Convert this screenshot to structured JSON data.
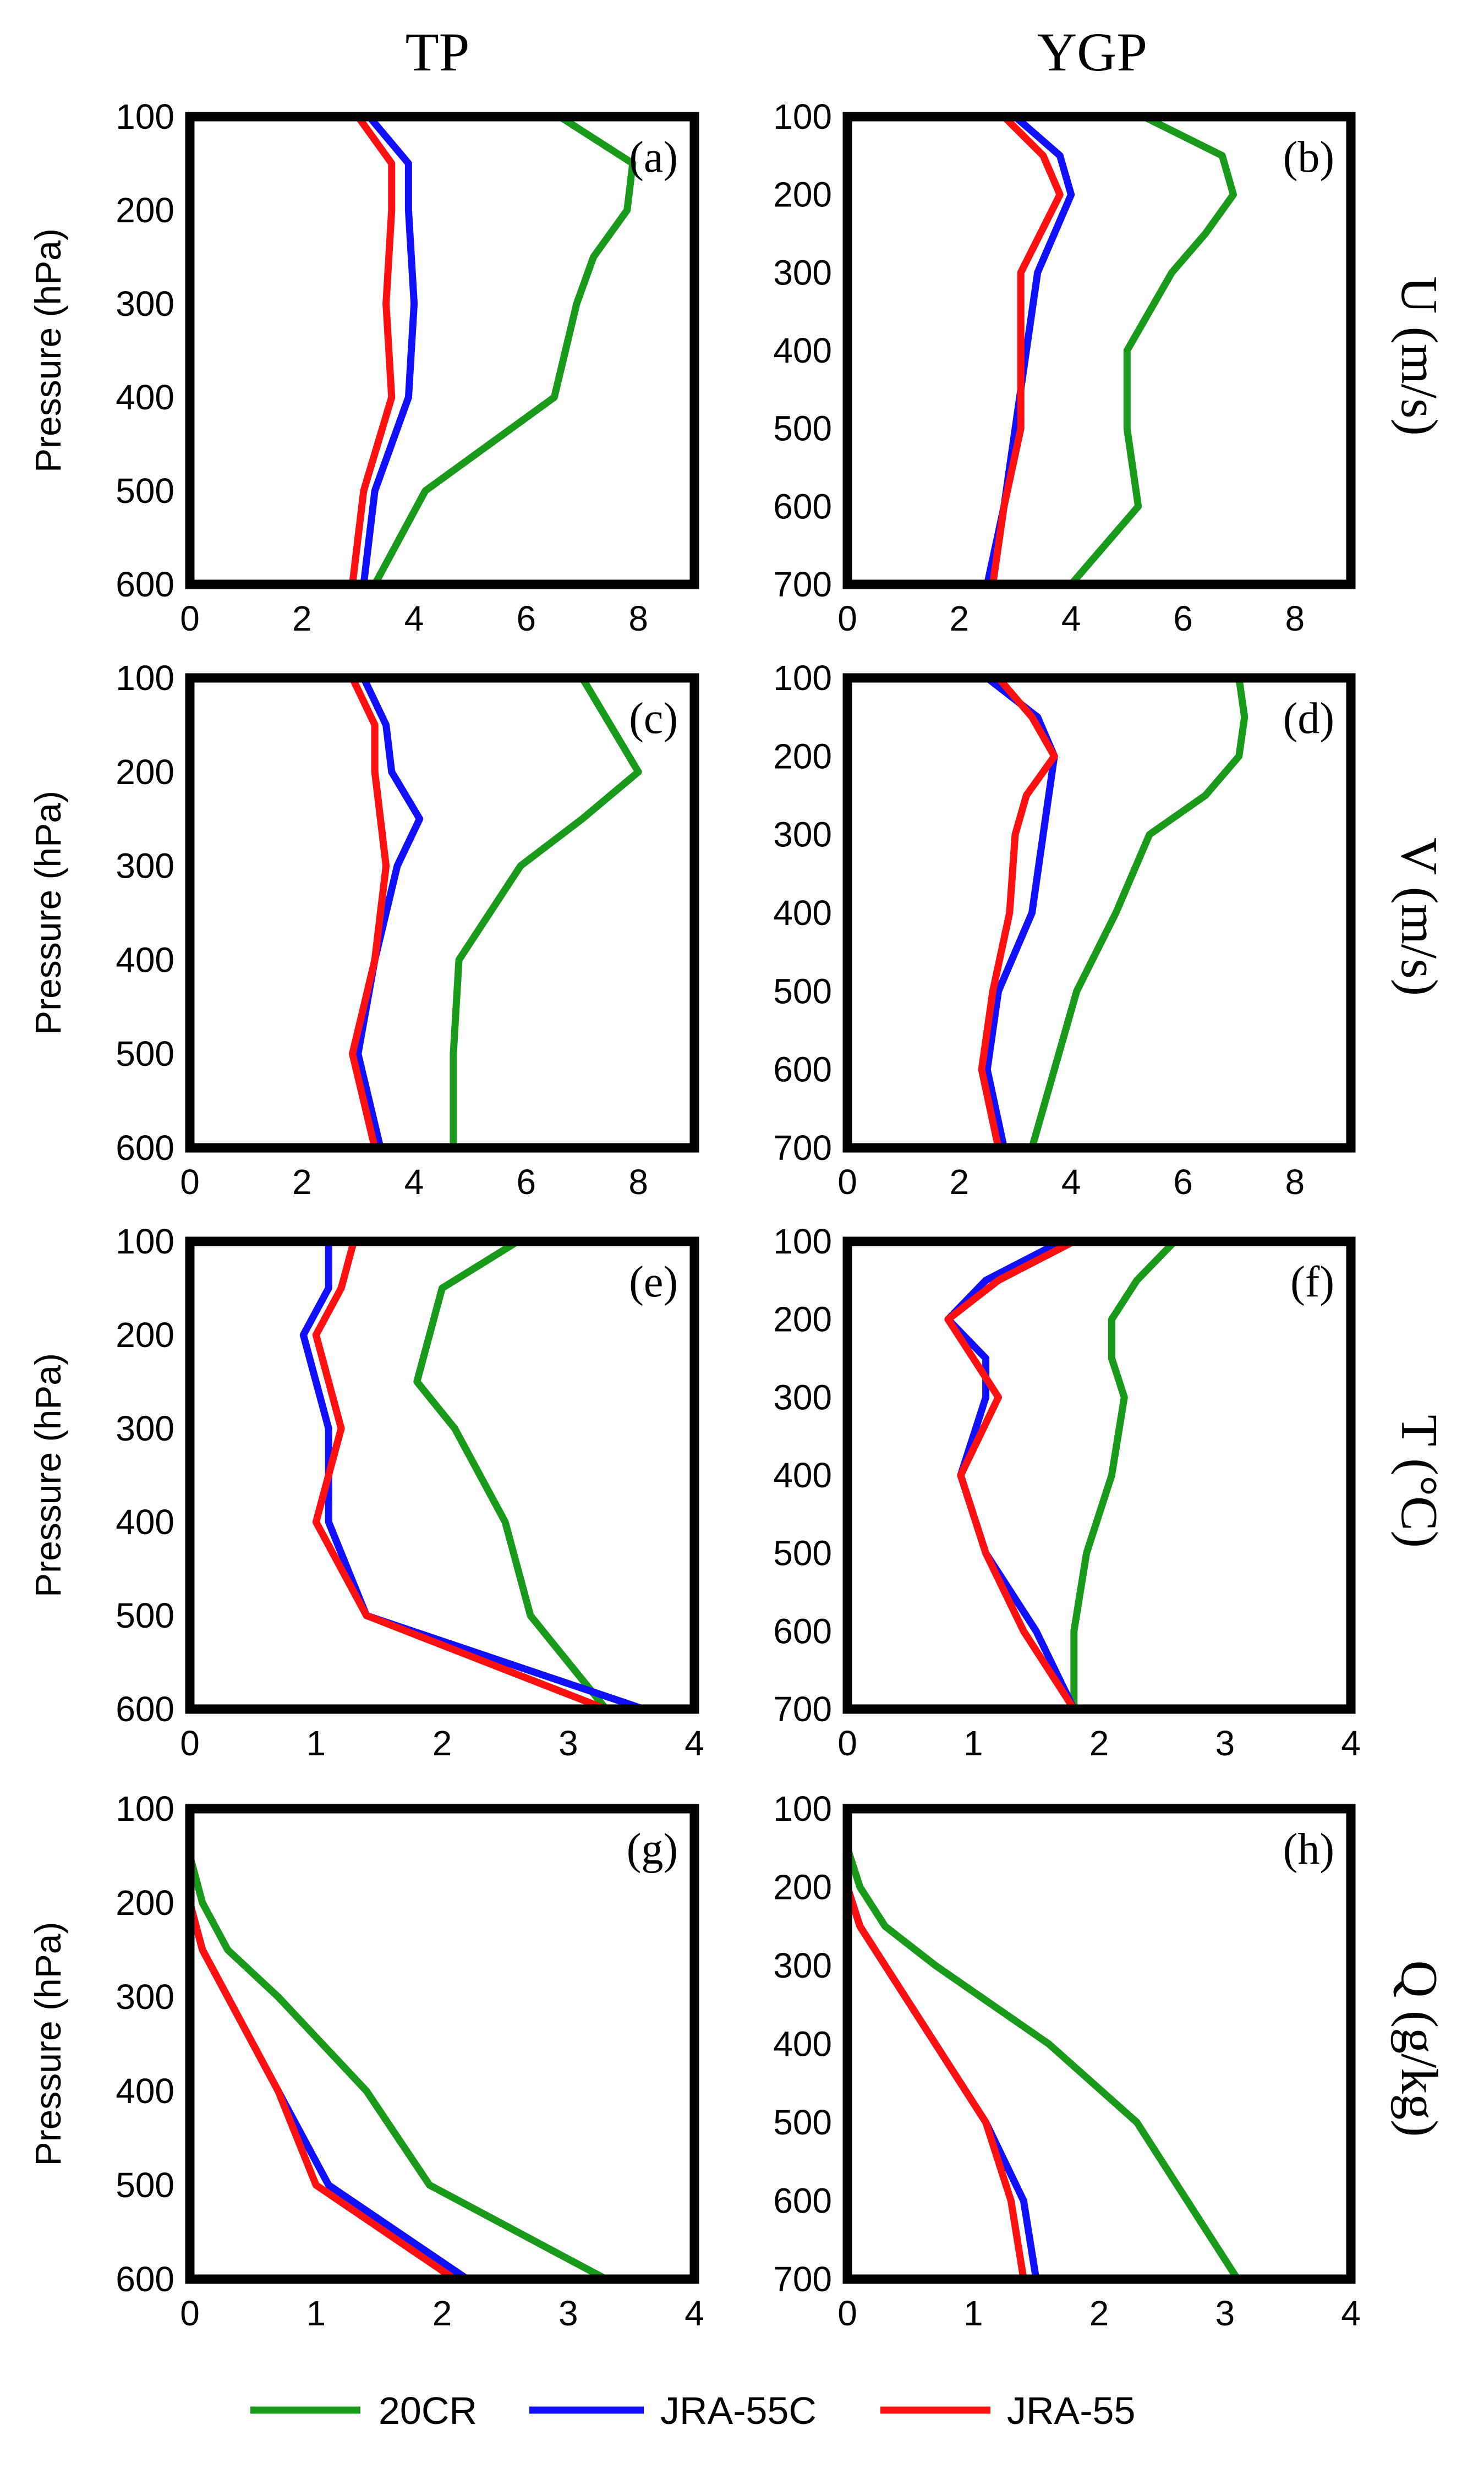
{
  "columns": [
    "TP",
    "YGP"
  ],
  "row_labels": [
    "U (m/s)",
    "V (m/s)",
    "T (°C)",
    "Q (g/kg)"
  ],
  "ylabel": "Pressure (hPa)",
  "legend": [
    {
      "name": "20CR",
      "color": "#1a9a1a"
    },
    {
      "name": "JRA-55C",
      "color": "#1010ff"
    },
    {
      "name": "JRA-55",
      "color": "#ff1010"
    }
  ],
  "chart_data": [
    {
      "type": "line",
      "panel": "(a)",
      "column": "TP",
      "variable": "U (m/s)",
      "ylabel": "Pressure (hPa)",
      "xlim": [
        0,
        9
      ],
      "xticks": [
        0,
        2,
        4,
        6,
        8
      ],
      "ylim": [
        100,
        600
      ],
      "yticks": [
        100,
        200,
        300,
        400,
        500,
        600
      ],
      "series": [
        {
          "name": "20CR",
          "color": "#1a9a1a",
          "points": [
            [
              6.6,
              100
            ],
            [
              7.9,
              150
            ],
            [
              7.8,
              200
            ],
            [
              7.2,
              250
            ],
            [
              6.9,
              300
            ],
            [
              6.5,
              400
            ],
            [
              4.2,
              500
            ],
            [
              3.3,
              600
            ]
          ]
        },
        {
          "name": "JRA-55C",
          "color": "#1010ff",
          "points": [
            [
              3.2,
              100
            ],
            [
              3.9,
              150
            ],
            [
              3.9,
              200
            ],
            [
              4.0,
              300
            ],
            [
              3.9,
              400
            ],
            [
              3.3,
              500
            ],
            [
              3.1,
              600
            ]
          ]
        },
        {
          "name": "JRA-55",
          "color": "#ff1010",
          "points": [
            [
              3.0,
              100
            ],
            [
              3.6,
              150
            ],
            [
              3.6,
              200
            ],
            [
              3.5,
              300
            ],
            [
              3.6,
              400
            ],
            [
              3.1,
              500
            ],
            [
              2.9,
              600
            ]
          ]
        }
      ]
    },
    {
      "type": "line",
      "panel": "(b)",
      "column": "YGP",
      "variable": "U (m/s)",
      "ylabel": "",
      "xlim": [
        0,
        9
      ],
      "xticks": [
        0,
        2,
        4,
        6,
        8
      ],
      "ylim": [
        100,
        700
      ],
      "yticks": [
        100,
        200,
        300,
        400,
        500,
        600,
        700
      ],
      "series": [
        {
          "name": "20CR",
          "color": "#1a9a1a",
          "points": [
            [
              5.3,
              100
            ],
            [
              6.7,
              150
            ],
            [
              6.9,
              200
            ],
            [
              6.4,
              250
            ],
            [
              5.8,
              300
            ],
            [
              5.0,
              400
            ],
            [
              5.0,
              500
            ],
            [
              5.2,
              600
            ],
            [
              4.0,
              700
            ]
          ]
        },
        {
          "name": "JRA-55C",
          "color": "#1010ff",
          "points": [
            [
              3.0,
              100
            ],
            [
              3.8,
              150
            ],
            [
              4.0,
              200
            ],
            [
              3.4,
              300
            ],
            [
              3.2,
              400
            ],
            [
              3.0,
              500
            ],
            [
              2.8,
              600
            ],
            [
              2.5,
              700
            ]
          ]
        },
        {
          "name": "JRA-55",
          "color": "#ff1010",
          "points": [
            [
              2.8,
              100
            ],
            [
              3.5,
              150
            ],
            [
              3.8,
              200
            ],
            [
              3.1,
              300
            ],
            [
              3.1,
              400
            ],
            [
              3.1,
              500
            ],
            [
              2.8,
              600
            ],
            [
              2.6,
              700
            ]
          ]
        }
      ]
    },
    {
      "type": "line",
      "panel": "(c)",
      "column": "TP",
      "variable": "V (m/s)",
      "ylabel": "Pressure (hPa)",
      "xlim": [
        0,
        9
      ],
      "xticks": [
        0,
        2,
        4,
        6,
        8
      ],
      "ylim": [
        100,
        600
      ],
      "yticks": [
        100,
        200,
        300,
        400,
        500,
        600
      ],
      "series": [
        {
          "name": "20CR",
          "color": "#1a9a1a",
          "points": [
            [
              7.0,
              100
            ],
            [
              8.0,
              200
            ],
            [
              7.0,
              250
            ],
            [
              5.9,
              300
            ],
            [
              4.8,
              400
            ],
            [
              4.7,
              500
            ],
            [
              4.7,
              600
            ]
          ]
        },
        {
          "name": "JRA-55C",
          "color": "#1010ff",
          "points": [
            [
              3.1,
              100
            ],
            [
              3.5,
              150
            ],
            [
              3.6,
              200
            ],
            [
              4.1,
              250
            ],
            [
              3.7,
              300
            ],
            [
              3.3,
              400
            ],
            [
              3.0,
              500
            ],
            [
              3.4,
              600
            ]
          ]
        },
        {
          "name": "JRA-55",
          "color": "#ff1010",
          "points": [
            [
              2.9,
              100
            ],
            [
              3.3,
              150
            ],
            [
              3.3,
              200
            ],
            [
              3.4,
              250
            ],
            [
              3.5,
              300
            ],
            [
              3.3,
              400
            ],
            [
              2.9,
              500
            ],
            [
              3.3,
              600
            ]
          ]
        }
      ]
    },
    {
      "type": "line",
      "panel": "(d)",
      "column": "YGP",
      "variable": "V (m/s)",
      "ylabel": "",
      "xlim": [
        0,
        9
      ],
      "xticks": [
        0,
        2,
        4,
        6,
        8
      ],
      "ylim": [
        100,
        700
      ],
      "yticks": [
        100,
        200,
        300,
        400,
        500,
        600,
        700
      ],
      "series": [
        {
          "name": "20CR",
          "color": "#1a9a1a",
          "points": [
            [
              7.0,
              100
            ],
            [
              7.1,
              150
            ],
            [
              7.0,
              200
            ],
            [
              6.4,
              250
            ],
            [
              5.4,
              300
            ],
            [
              4.8,
              400
            ],
            [
              4.1,
              500
            ],
            [
              3.3,
              700
            ]
          ]
        },
        {
          "name": "JRA-55C",
          "color": "#1010ff",
          "points": [
            [
              2.5,
              100
            ],
            [
              3.4,
              150
            ],
            [
              3.7,
              200
            ],
            [
              3.6,
              250
            ],
            [
              3.5,
              300
            ],
            [
              3.3,
              400
            ],
            [
              2.7,
              500
            ],
            [
              2.5,
              600
            ],
            [
              2.8,
              700
            ]
          ]
        },
        {
          "name": "JRA-55",
          "color": "#ff1010",
          "points": [
            [
              2.7,
              100
            ],
            [
              3.3,
              150
            ],
            [
              3.7,
              200
            ],
            [
              3.2,
              250
            ],
            [
              3.0,
              300
            ],
            [
              2.9,
              400
            ],
            [
              2.6,
              500
            ],
            [
              2.4,
              600
            ],
            [
              2.7,
              700
            ]
          ]
        }
      ]
    },
    {
      "type": "line",
      "panel": "(e)",
      "column": "TP",
      "variable": "T (°C)",
      "ylabel": "Pressure (hPa)",
      "xlim": [
        0,
        4
      ],
      "xticks": [
        0,
        1,
        2,
        3,
        4
      ],
      "ylim": [
        100,
        600
      ],
      "yticks": [
        100,
        200,
        300,
        400,
        500,
        600
      ],
      "series": [
        {
          "name": "20CR",
          "color": "#1a9a1a",
          "points": [
            [
              2.6,
              100
            ],
            [
              2.0,
              150
            ],
            [
              1.8,
              250
            ],
            [
              2.1,
              300
            ],
            [
              2.5,
              400
            ],
            [
              2.7,
              500
            ],
            [
              3.3,
              600
            ]
          ]
        },
        {
          "name": "JRA-55C",
          "color": "#1010ff",
          "points": [
            [
              1.1,
              100
            ],
            [
              1.1,
              150
            ],
            [
              0.9,
              200
            ],
            [
              1.1,
              300
            ],
            [
              1.1,
              400
            ],
            [
              1.4,
              500
            ],
            [
              3.6,
              600
            ]
          ]
        },
        {
          "name": "JRA-55",
          "color": "#ff1010",
          "points": [
            [
              1.3,
              100
            ],
            [
              1.2,
              150
            ],
            [
              1.0,
              200
            ],
            [
              1.2,
              300
            ],
            [
              1.0,
              400
            ],
            [
              1.4,
              500
            ],
            [
              3.3,
              600
            ]
          ]
        }
      ]
    },
    {
      "type": "line",
      "panel": "(f)",
      "column": "YGP",
      "variable": "T (°C)",
      "ylabel": "",
      "xlim": [
        0,
        4
      ],
      "xticks": [
        0,
        1,
        2,
        3,
        4
      ],
      "ylim": [
        100,
        700
      ],
      "yticks": [
        100,
        200,
        300,
        400,
        500,
        600,
        700
      ],
      "series": [
        {
          "name": "20CR",
          "color": "#1a9a1a",
          "points": [
            [
              2.6,
              100
            ],
            [
              2.3,
              150
            ],
            [
              2.1,
              200
            ],
            [
              2.1,
              250
            ],
            [
              2.2,
              300
            ],
            [
              2.1,
              400
            ],
            [
              1.9,
              500
            ],
            [
              1.8,
              600
            ],
            [
              1.8,
              700
            ]
          ]
        },
        {
          "name": "JRA-55C",
          "color": "#1010ff",
          "points": [
            [
              1.7,
              100
            ],
            [
              1.1,
              150
            ],
            [
              0.8,
              200
            ],
            [
              1.1,
              250
            ],
            [
              1.1,
              300
            ],
            [
              0.9,
              400
            ],
            [
              1.1,
              500
            ],
            [
              1.5,
              600
            ],
            [
              1.8,
              700
            ]
          ]
        },
        {
          "name": "JRA-55",
          "color": "#ff1010",
          "points": [
            [
              1.8,
              100
            ],
            [
              1.2,
              150
            ],
            [
              0.8,
              200
            ],
            [
              1.0,
              250
            ],
            [
              1.2,
              300
            ],
            [
              0.9,
              400
            ],
            [
              1.1,
              500
            ],
            [
              1.4,
              600
            ],
            [
              1.8,
              700
            ]
          ]
        }
      ]
    },
    {
      "type": "line",
      "panel": "(g)",
      "column": "TP",
      "variable": "Q (g/kg)",
      "ylabel": "Pressure (hPa)",
      "xlim": [
        0,
        4
      ],
      "xticks": [
        0,
        1,
        2,
        3,
        4
      ],
      "ylim": [
        100,
        600
      ],
      "yticks": [
        100,
        200,
        300,
        400,
        500,
        600
      ],
      "series": [
        {
          "name": "20CR",
          "color": "#1a9a1a",
          "points": [
            [
              0.0,
              150
            ],
            [
              0.1,
              200
            ],
            [
              0.3,
              250
            ],
            [
              0.7,
              300
            ],
            [
              1.4,
              400
            ],
            [
              1.9,
              500
            ],
            [
              3.3,
              600
            ]
          ]
        },
        {
          "name": "JRA-55C",
          "color": "#1010ff",
          "points": [
            [
              0.0,
              150
            ],
            [
              0.0,
              200
            ],
            [
              0.1,
              250
            ],
            [
              0.3,
              300
            ],
            [
              0.7,
              400
            ],
            [
              1.1,
              500
            ],
            [
              2.2,
              600
            ]
          ]
        },
        {
          "name": "JRA-55",
          "color": "#ff1010",
          "points": [
            [
              0.0,
              150
            ],
            [
              0.0,
              200
            ],
            [
              0.1,
              250
            ],
            [
              0.3,
              300
            ],
            [
              0.7,
              400
            ],
            [
              1.0,
              500
            ],
            [
              2.1,
              600
            ]
          ]
        }
      ]
    },
    {
      "type": "line",
      "panel": "(h)",
      "column": "YGP",
      "variable": "Q (g/kg)",
      "ylabel": "",
      "xlim": [
        0,
        4
      ],
      "xticks": [
        0,
        1,
        2,
        3,
        4
      ],
      "ylim": [
        100,
        700
      ],
      "yticks": [
        100,
        200,
        300,
        400,
        500,
        600,
        700
      ],
      "series": [
        {
          "name": "20CR",
          "color": "#1a9a1a",
          "points": [
            [
              0.0,
              150
            ],
            [
              0.1,
              200
            ],
            [
              0.3,
              250
            ],
            [
              0.7,
              300
            ],
            [
              1.6,
              400
            ],
            [
              2.3,
              500
            ],
            [
              3.1,
              700
            ]
          ]
        },
        {
          "name": "JRA-55C",
          "color": "#1010ff",
          "points": [
            [
              0.0,
              150
            ],
            [
              0.0,
              200
            ],
            [
              0.1,
              250
            ],
            [
              0.3,
              300
            ],
            [
              0.7,
              400
            ],
            [
              1.1,
              500
            ],
            [
              1.4,
              600
            ],
            [
              1.5,
              700
            ]
          ]
        },
        {
          "name": "JRA-55",
          "color": "#ff1010",
          "points": [
            [
              0.0,
              150
            ],
            [
              0.0,
              200
            ],
            [
              0.1,
              250
            ],
            [
              0.3,
              300
            ],
            [
              0.7,
              400
            ],
            [
              1.1,
              500
            ],
            [
              1.3,
              600
            ],
            [
              1.4,
              700
            ]
          ]
        }
      ]
    }
  ]
}
